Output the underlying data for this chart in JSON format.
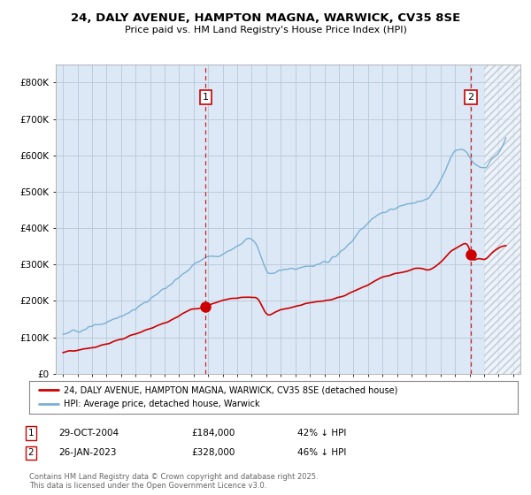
{
  "title": "24, DALY AVENUE, HAMPTON MAGNA, WARWICK, CV35 8SE",
  "subtitle": "Price paid vs. HM Land Registry's House Price Index (HPI)",
  "legend_line1": "24, DALY AVENUE, HAMPTON MAGNA, WARWICK, CV35 8SE (detached house)",
  "legend_line2": "HPI: Average price, detached house, Warwick",
  "marker1_label": "1",
  "marker1_date": "29-OCT-2004",
  "marker1_price": "£184,000",
  "marker1_hpi": "42% ↓ HPI",
  "marker1_x": 2004.83,
  "marker1_y": 184000,
  "marker2_label": "2",
  "marker2_date": "26-JAN-2023",
  "marker2_price": "£328,000",
  "marker2_hpi": "46% ↓ HPI",
  "marker2_x": 2023.08,
  "marker2_y": 328000,
  "property_color": "#cc0000",
  "hpi_color": "#7ab0d4",
  "vline_color": "#cc0000",
  "plot_bg_color": "#dce8f5",
  "hatch_color": "#c0c8d4",
  "xlabel": "",
  "ylabel": "",
  "ylim": [
    0,
    850000
  ],
  "xlim": [
    1994.5,
    2026.5
  ],
  "hatch_start_x": 2024.0,
  "footer": "Contains HM Land Registry data © Crown copyright and database right 2025.\nThis data is licensed under the Open Government Licence v3.0.",
  "background_color": "#ffffff",
  "grid_color": "#b8c8d8"
}
